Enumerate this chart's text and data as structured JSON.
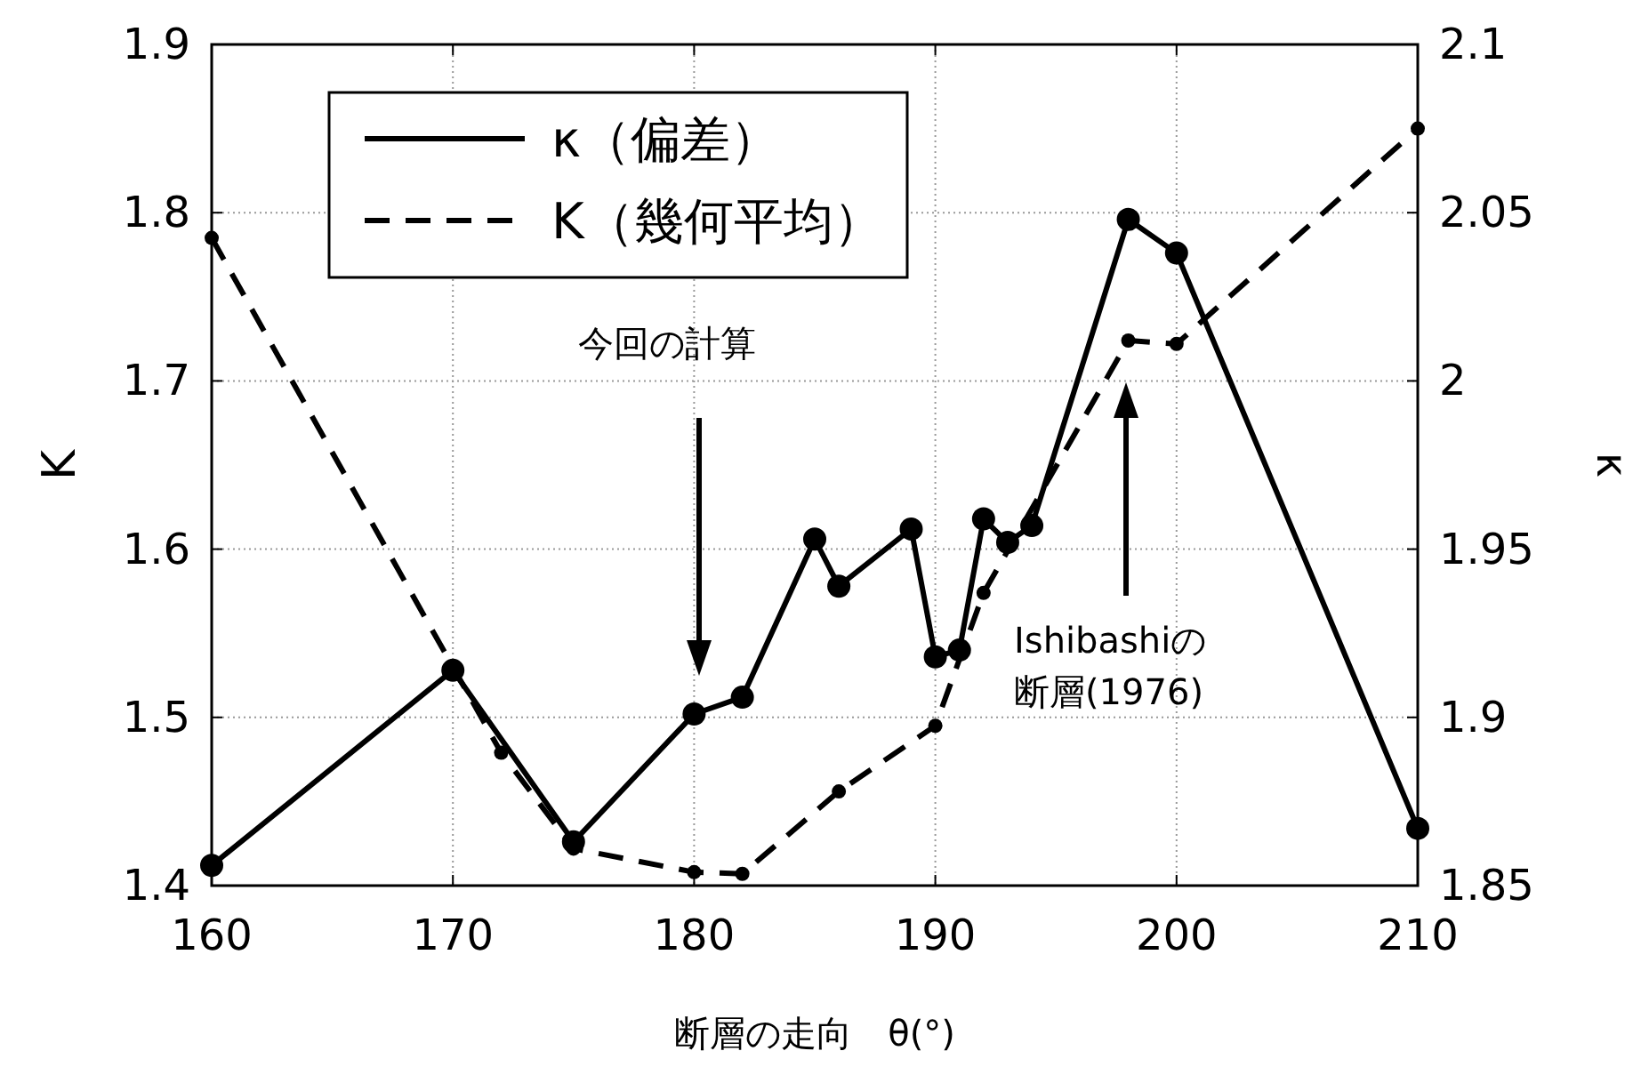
{
  "chart_data": {
    "type": "line",
    "xlabel": "断層の走向　θ(°)",
    "ylabel": "K",
    "y2label": "κ",
    "xlim": [
      160,
      210
    ],
    "xticks": [
      160,
      170,
      180,
      190,
      200,
      210
    ],
    "ylim": [
      1.4,
      1.9
    ],
    "yticks": [
      1.4,
      1.5,
      1.6,
      1.7,
      1.8,
      1.9
    ],
    "y2lim": [
      1.85,
      2.1
    ],
    "y2ticks": [
      1.85,
      1.9,
      1.95,
      {
        "value": 2,
        "label": "2"
      },
      2.05,
      2.1
    ],
    "grid": true,
    "legend": "top",
    "marker": "circle",
    "series": [
      {
        "name": "κ（偏差）",
        "color": "#000000",
        "axis": "y2",
        "line_style": "solid",
        "x": [
          160,
          170,
          175,
          180,
          182,
          185,
          186,
          189,
          190,
          191,
          192,
          193,
          194,
          198,
          200,
          210
        ],
        "values": [
          1.856,
          1.914,
          1.863,
          1.901,
          1.906,
          1.953,
          1.939,
          1.956,
          1.918,
          1.92,
          1.959,
          1.952,
          1.957,
          2.048,
          2.038,
          1.867
        ]
      },
      {
        "name": "K（幾何平均）",
        "color": "#000000",
        "axis": "y",
        "line_style": "dashed",
        "x": [
          160,
          172,
          175,
          180,
          182,
          186,
          190,
          192,
          198,
          200,
          210
        ],
        "values": [
          1.785,
          1.479,
          1.422,
          1.408,
          1.407,
          1.456,
          1.495,
          1.574,
          1.724,
          1.722,
          1.85
        ]
      }
    ],
    "annotations": [
      "今回の計算",
      "Ishibashiの",
      "断層(1976)"
    ]
  }
}
